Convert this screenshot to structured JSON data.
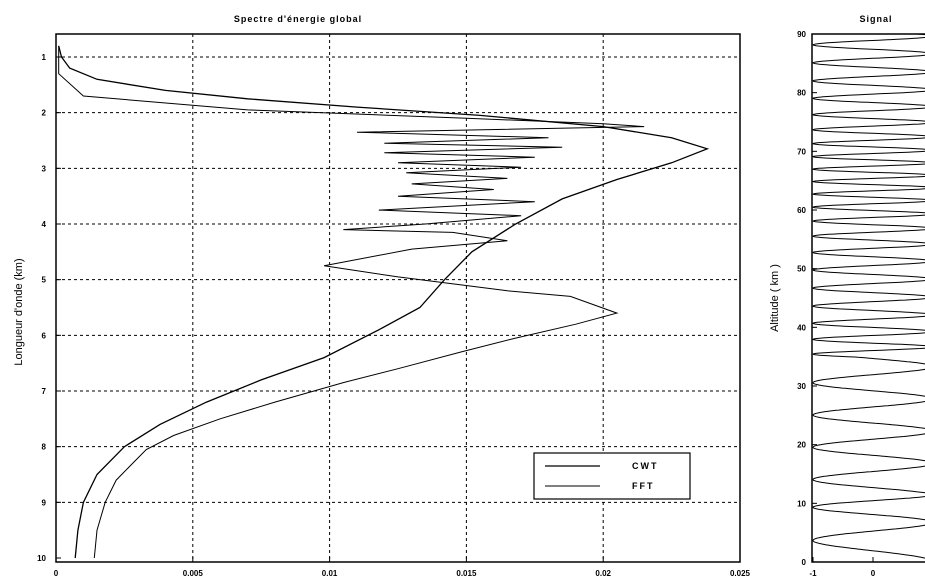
{
  "chart_data": [
    {
      "type": "line",
      "title": "Spectre d'énergie global",
      "xlabel": "",
      "ylabel": "Longueur d'onde (km)",
      "xlim": [
        0,
        0.025
      ],
      "ylim": [
        1,
        10
      ],
      "y_inverted": true,
      "grid": true,
      "legend_position": "bottom-right",
      "x_ticks": [
        "0",
        "0.005",
        "0.01",
        "0.015",
        "0.02",
        "0.025"
      ],
      "y_ticks": [
        "1",
        "2",
        "3",
        "4",
        "5",
        "6",
        "7",
        "8",
        "9",
        "10"
      ],
      "series": [
        {
          "name": "CWT",
          "points": [
            [
              0.0001,
              0.8
            ],
            [
              0.0002,
              1.0
            ],
            [
              0.0005,
              1.2
            ],
            [
              0.0015,
              1.4
            ],
            [
              0.004,
              1.6
            ],
            [
              0.007,
              1.75
            ],
            [
              0.011,
              1.9
            ],
            [
              0.0155,
              2.05
            ],
            [
              0.02,
              2.25
            ],
            [
              0.0225,
              2.45
            ],
            [
              0.0238,
              2.65
            ],
            [
              0.0225,
              2.9
            ],
            [
              0.0205,
              3.2
            ],
            [
              0.0185,
              3.55
            ],
            [
              0.0168,
              4.0
            ],
            [
              0.0152,
              4.5
            ],
            [
              0.0142,
              5.0
            ],
            [
              0.0133,
              5.5
            ],
            [
              0.0118,
              5.9
            ],
            [
              0.0098,
              6.4
            ],
            [
              0.0075,
              6.8
            ],
            [
              0.0055,
              7.2
            ],
            [
              0.0038,
              7.6
            ],
            [
              0.0025,
              8.0
            ],
            [
              0.0015,
              8.5
            ],
            [
              0.001,
              9.0
            ],
            [
              0.0008,
              9.5
            ],
            [
              0.0007,
              10.0
            ]
          ]
        },
        {
          "name": "FFT",
          "points": [
            [
              0.0001,
              0.8
            ],
            [
              0.0001,
              1.3
            ],
            [
              0.001,
              1.7
            ],
            [
              0.007,
              1.95
            ],
            [
              0.015,
              2.1
            ],
            [
              0.02,
              2.2
            ],
            [
              0.0215,
              2.25
            ],
            [
              0.011,
              2.35
            ],
            [
              0.018,
              2.45
            ],
            [
              0.012,
              2.55
            ],
            [
              0.0185,
              2.62
            ],
            [
              0.012,
              2.72
            ],
            [
              0.0175,
              2.8
            ],
            [
              0.0125,
              2.9
            ],
            [
              0.017,
              2.98
            ],
            [
              0.0128,
              3.08
            ],
            [
              0.0165,
              3.18
            ],
            [
              0.013,
              3.28
            ],
            [
              0.016,
              3.38
            ],
            [
              0.0125,
              3.5
            ],
            [
              0.0175,
              3.6
            ],
            [
              0.0118,
              3.75
            ],
            [
              0.017,
              3.85
            ],
            [
              0.0135,
              4.0
            ],
            [
              0.0105,
              4.1
            ],
            [
              0.0145,
              4.15
            ],
            [
              0.0165,
              4.3
            ],
            [
              0.013,
              4.45
            ],
            [
              0.0098,
              4.75
            ],
            [
              0.0125,
              4.95
            ],
            [
              0.0165,
              5.2
            ],
            [
              0.0188,
              5.3
            ],
            [
              0.0205,
              5.6
            ],
            [
              0.019,
              5.8
            ],
            [
              0.0168,
              6.05
            ],
            [
              0.0148,
              6.3
            ],
            [
              0.0125,
              6.6
            ],
            [
              0.0105,
              6.85
            ],
            [
              0.008,
              7.2
            ],
            [
              0.006,
              7.5
            ],
            [
              0.0043,
              7.8
            ],
            [
              0.0033,
              8.05
            ],
            [
              0.0028,
              8.3
            ],
            [
              0.0022,
              8.6
            ],
            [
              0.0018,
              9.0
            ],
            [
              0.0015,
              9.5
            ],
            [
              0.0014,
              10.0
            ]
          ]
        }
      ]
    },
    {
      "type": "line",
      "title": "Signal",
      "xlabel": "",
      "ylabel": "Altitude ( km )",
      "xlim": [
        -1,
        1
      ],
      "ylim": [
        0,
        90
      ],
      "grid": false,
      "x_ticks": [
        "-1",
        "0"
      ],
      "y_ticks": [
        "0",
        "10",
        "20",
        "30",
        "40",
        "50",
        "60",
        "70",
        "80",
        "90"
      ],
      "series": [
        {
          "name": "",
          "function": "cos(2*pi*z/lambda(z))",
          "amplitude": 1
        }
      ]
    }
  ]
}
